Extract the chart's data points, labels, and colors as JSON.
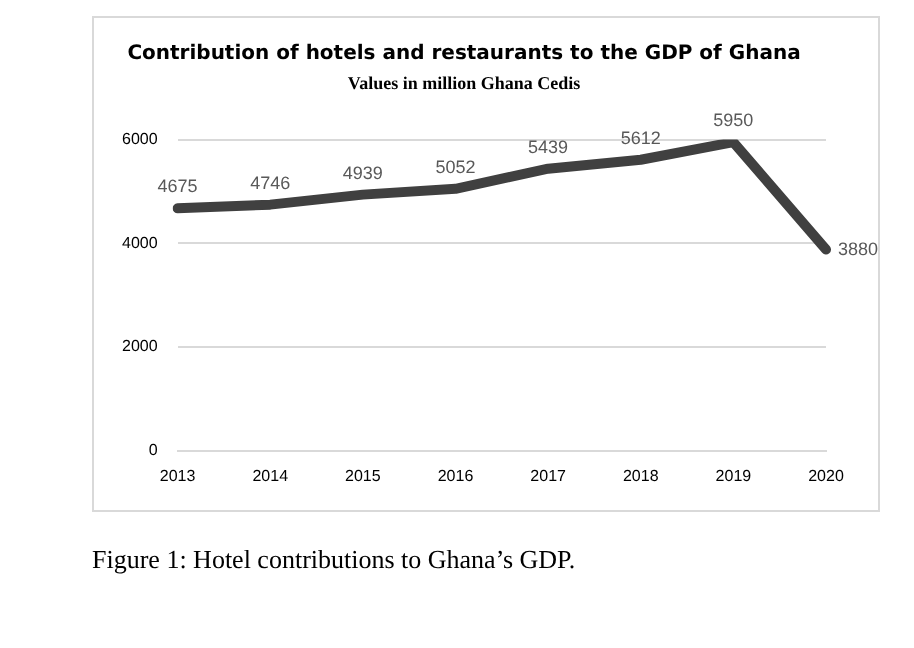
{
  "chart_data": {
    "type": "line",
    "title": "Contribution of hotels and restaurants to the GDP of Ghana",
    "subtitle": "Values in million Ghana Cedis",
    "categories": [
      "2013",
      "2014",
      "2015",
      "2016",
      "2017",
      "2018",
      "2019",
      "2020"
    ],
    "series": [
      {
        "color": "#404040",
        "values": [
          4675,
          4746,
          4939,
          5052,
          5439,
          5612,
          5950,
          3880
        ]
      }
    ],
    "ylim": [
      0,
      6000
    ],
    "yticks": [
      0,
      2000,
      4000,
      6000
    ],
    "grid": "y",
    "legend": false,
    "marker": "none",
    "line_style": "solid",
    "data_labels": true,
    "annotations": [
      "Figure 1: Hotel contributions to Ghana’s GDP."
    ]
  }
}
